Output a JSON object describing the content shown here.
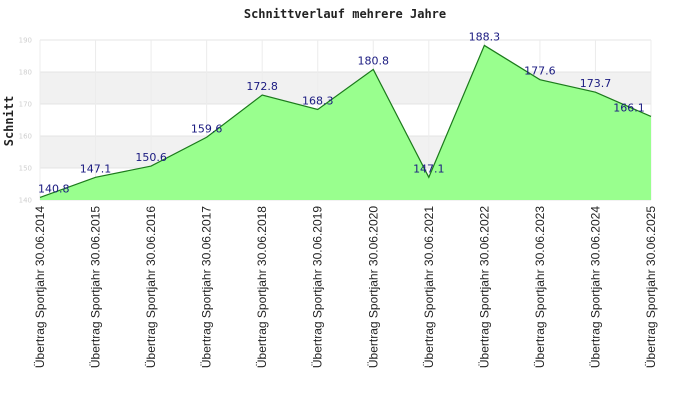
{
  "chart_data": {
    "type": "area",
    "title": "Schnittverlauf mehrere Jahre",
    "ylabel": "Schnitt",
    "xlabel": "",
    "ylim": [
      140,
      190
    ],
    "yticks": [
      140,
      150,
      160,
      170,
      180,
      190
    ],
    "grid": true,
    "colors": {
      "fill": "#99ff8e",
      "line": "#1b7a1b",
      "band": "#f1f1f1",
      "label": "#1a1a80"
    },
    "categories": [
      "Übertrag Sportjahr 30.06.2014",
      "Übertrag Sportjahr 30.06.2015",
      "Übertrag Sportjahr 30.06.2016",
      "Übertrag Sportjahr 30.06.2017",
      "Übertrag Sportjahr 30.06.2018",
      "Übertrag Sportjahr 30.06.2019",
      "Übertrag Sportjahr 30.06.2020",
      "Übertrag Sportjahr 30.06.2021",
      "Übertrag Sportjahr 30.06.2022",
      "Übertrag Sportjahr 30.06.2023",
      "Übertrag Sportjahr 30.06.2024",
      "Übertrag Sportjahr 30.06.2025"
    ],
    "values": [
      140.8,
      147.1,
      150.6,
      159.6,
      172.8,
      168.3,
      180.8,
      147.1,
      188.3,
      177.6,
      173.7,
      166.1
    ],
    "labels": [
      "140.8",
      "147.1",
      "150.6",
      "159.6",
      "172.8",
      "168.3",
      "180.8",
      "147.1",
      "188.3",
      "177.6",
      "173.7",
      "166.1"
    ]
  }
}
